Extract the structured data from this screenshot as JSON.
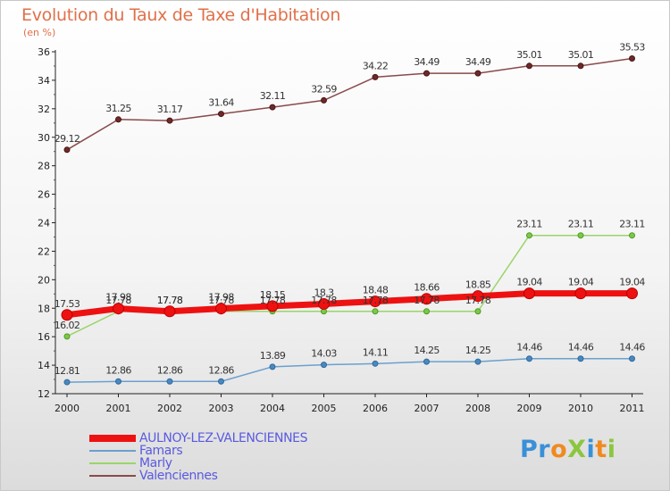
{
  "header": {
    "title": "Evolution du Taux de Taxe d'Habitation",
    "unit": "(en %)"
  },
  "logo": {
    "text": "ProXiti"
  },
  "colors": {
    "AULNOY-LEZ-VALENCIENNES": "#ee1111",
    "Famars": "#6aa0cf",
    "Marly": "#9ad46a",
    "Valenciennes": "#8a4a4a"
  },
  "chart_data": {
    "type": "line",
    "title": "Evolution du Taux de Taxe d'Habitation",
    "ylabel": "(en %)",
    "xlabel": "",
    "ylim": [
      12,
      36
    ],
    "yticks": [
      12,
      14,
      16,
      18,
      20,
      22,
      24,
      26,
      28,
      30,
      32,
      34,
      36
    ],
    "grid": false,
    "legend": "bottom-left",
    "categories": [
      "2000",
      "2001",
      "2002",
      "2003",
      "2004",
      "2005",
      "2006",
      "2007",
      "2008",
      "2009",
      "2010",
      "2011"
    ],
    "series": [
      {
        "name": "AULNOY-LEZ-VALENCIENNES",
        "values": [
          17.53,
          17.98,
          17.78,
          17.98,
          18.15,
          18.3,
          18.48,
          18.66,
          18.85,
          19.04,
          19.04,
          19.04
        ]
      },
      {
        "name": "Famars",
        "values": [
          12.81,
          12.86,
          12.86,
          12.86,
          13.89,
          14.03,
          14.11,
          14.25,
          14.25,
          14.46,
          14.46,
          14.46
        ]
      },
      {
        "name": "Marly",
        "values": [
          16.02,
          17.78,
          17.78,
          17.78,
          17.78,
          17.78,
          17.78,
          17.78,
          17.78,
          23.11,
          23.11,
          23.11
        ]
      },
      {
        "name": "Valenciennes",
        "values": [
          29.12,
          31.25,
          31.17,
          31.64,
          32.11,
          32.59,
          34.22,
          34.49,
          34.49,
          35.01,
          35.01,
          35.53
        ]
      }
    ],
    "data_labels": {
      "AULNOY-LEZ-VALENCIENNES": [
        "17.53",
        "17.98",
        "17.78",
        "17.98",
        "18.15",
        "18.3",
        "18.48",
        "18.66",
        "18.85",
        "19.04",
        "19.04",
        "19.04"
      ],
      "Famars": [
        "12.81",
        "12.86",
        "12.86",
        "12.86",
        "13.89",
        "14.03",
        "14.11",
        "14.25",
        "14.25",
        "14.46",
        "14.46",
        "14.46"
      ],
      "Marly": [
        "16.02",
        "17.78",
        "17.78",
        "17.78",
        "17.78",
        "17.78",
        "17.78",
        "17.78",
        "17.78",
        "23.11",
        "23.11",
        "23.11"
      ],
      "Valenciennes": [
        "29.12",
        "31.25",
        "31.17",
        "31.64",
        "32.11",
        "32.59",
        "34.22",
        "34.49",
        "34.49",
        "35.01",
        "35.01",
        "35.53"
      ]
    }
  }
}
